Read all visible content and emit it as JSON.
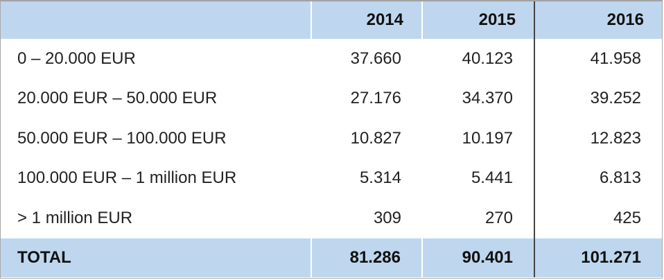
{
  "table": {
    "header": {
      "label": "",
      "years": [
        "2014",
        "2015",
        "2016"
      ]
    },
    "rows": [
      {
        "label": "0 – 20.000 EUR",
        "values": [
          "37.660",
          "40.123",
          "41.958"
        ]
      },
      {
        "label": "20.000 EUR – 50.000 EUR",
        "values": [
          "27.176",
          "34.370",
          "39.252"
        ]
      },
      {
        "label": "50.000 EUR – 100.000 EUR",
        "values": [
          "10.827",
          "10.197",
          "12.823"
        ]
      },
      {
        "label": "100.000 EUR – 1 million EUR",
        "values": [
          "5.314",
          "5.441",
          "6.813"
        ]
      },
      {
        "label": "> 1 million EUR",
        "values": [
          "309",
          "270",
          "425"
        ]
      }
    ],
    "total": {
      "label": "TOTAL",
      "values": [
        "81.286",
        "90.401",
        "101.271"
      ]
    }
  },
  "colors": {
    "header_bg": "#bed7ee",
    "body_bg": "#ffffff",
    "separator": "#444444"
  }
}
